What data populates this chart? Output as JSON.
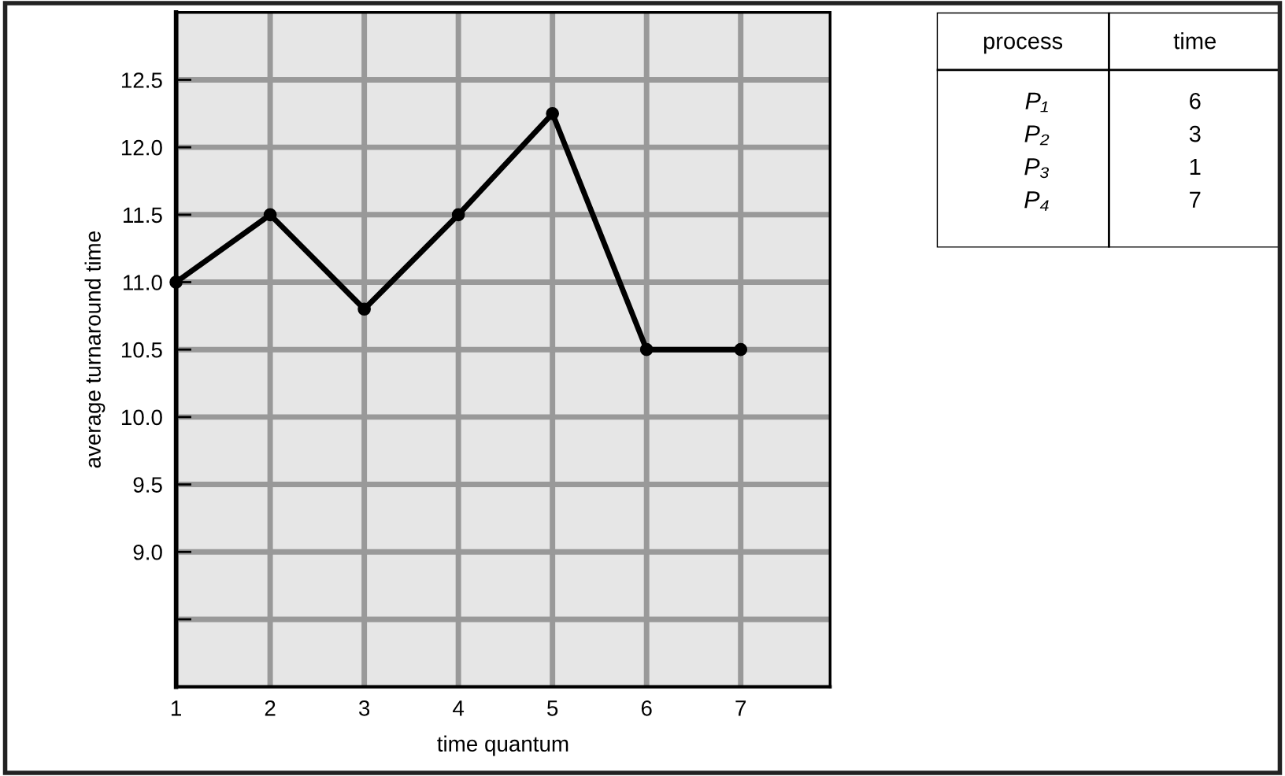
{
  "chart_data": [
    {
      "type": "line",
      "xlabel": "time quantum",
      "ylabel": "average turnaround time",
      "x": [
        1,
        2,
        3,
        4,
        5,
        6,
        7
      ],
      "series": [
        {
          "color": "#000000",
          "values": [
            11.0,
            11.5,
            10.8,
            11.5,
            12.25,
            10.5,
            10.5
          ]
        }
      ],
      "xlim": [
        1,
        7.95
      ],
      "xticks": [
        1,
        2,
        3,
        4,
        5,
        6,
        7
      ],
      "ylim": [
        8.0,
        13.0
      ],
      "yticks": [
        {
          "value": 8.5,
          "label": null
        },
        {
          "value": 9,
          "label": "9.0"
        },
        9.5,
        {
          "value": 10,
          "label": "10.0"
        },
        10.5,
        {
          "value": 11,
          "label": "11.0"
        },
        11.5,
        {
          "value": 12,
          "label": "12.0"
        },
        12.5
      ],
      "grid": true,
      "marker": "circle",
      "line_style": "solid"
    },
    {
      "type": "other",
      "annotations": [
        "process",
        "time",
        "P₁",
        "6",
        "P₂",
        "3",
        "P₃",
        "1",
        "P₄",
        "7"
      ]
    }
  ]
}
